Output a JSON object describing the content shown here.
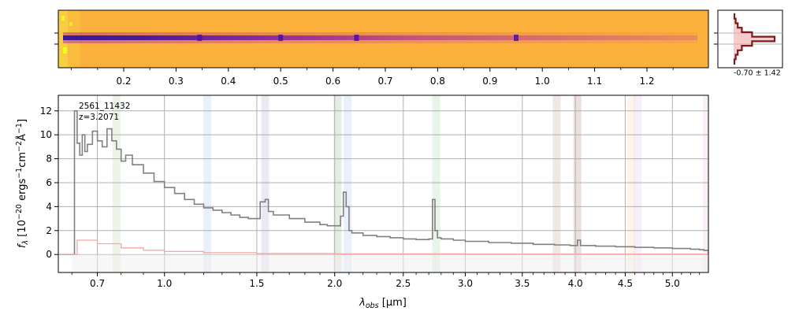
{
  "chart_data": [
    {
      "type": "heatmap",
      "panel": "2d-spectrum",
      "colormap": "plasma",
      "x_unit": "µm",
      "top_ticks": [
        "0.2",
        "0.3",
        "0.4",
        "0.5",
        "0.6",
        "0.7",
        "0.8",
        "0.9",
        "1.0",
        "1.1",
        "1.2"
      ],
      "top_tick_values": [
        0.2,
        0.3,
        0.4,
        0.5,
        0.6,
        0.7,
        0.8,
        0.9,
        1.0,
        1.1,
        1.2
      ],
      "emission_features_x": [
        0.345,
        0.5,
        0.645,
        0.95
      ],
      "trace_row_fraction": 0.5
    },
    {
      "type": "line",
      "panel": "cross-dispersion-profile",
      "annotation": "-0.70 ± 1.42",
      "profile": [
        0.02,
        0.05,
        0.1,
        0.2,
        0.45,
        1.0,
        0.45,
        0.2,
        0.1,
        0.05,
        0.02
      ]
    },
    {
      "type": "line",
      "panel": "1d-spectrum",
      "title": "",
      "annotation_lines": [
        "2561_11432",
        "z=3.2071"
      ],
      "xlabel": "λobs [µm]",
      "xlabel_parts": {
        "symbol": "λ",
        "sub": "obs",
        "rest": " [µm]"
      },
      "ylabel": "fλ [10−20 ergs−1cm−2Å−1]",
      "ylabel_parts": {
        "symbol": "f",
        "sub": "λ",
        "rest": " [10",
        "sup1": "−20",
        "mid1": " ergs",
        "sup2": "−1",
        "mid2": "cm",
        "sup3": "−2",
        "mid3": "Å",
        "sup4": "−1",
        "end": "]"
      },
      "x_ticks": [
        "0.7",
        "1.0",
        "1.5",
        "2.0",
        "2.5",
        "3.0",
        "3.5",
        "4.0",
        "4.5",
        "5.0"
      ],
      "x_tick_values": [
        0.7,
        1.0,
        1.5,
        2.0,
        2.5,
        3.0,
        3.5,
        4.0,
        4.5,
        5.0
      ],
      "y_ticks": [
        "0",
        "2",
        "4",
        "6",
        "8",
        "10",
        "12"
      ],
      "y_tick_values": [
        0,
        2,
        4,
        6,
        8,
        10,
        12
      ],
      "xlim": [
        0.55,
        5.4
      ],
      "ylim": [
        -1.5,
        13.3
      ],
      "grid": true,
      "line_bands": [
        {
          "x": 0.78,
          "color": "#9bc27a"
        },
        {
          "x": 1.22,
          "color": "#7fb3e6"
        },
        {
          "x": 1.55,
          "color": "#8a86c4"
        },
        {
          "x": 2.02,
          "color": "#5aa05a"
        },
        {
          "x": 2.09,
          "color": "#7fb3e6"
        },
        {
          "x": 2.76,
          "color": "#7cc27a"
        },
        {
          "x": 3.82,
          "color": "#b07a6a"
        },
        {
          "x": 4.02,
          "color": "#a05050"
        },
        {
          "x": 4.56,
          "color": "#f2c090"
        },
        {
          "x": 4.63,
          "color": "#d9a6e0"
        },
        {
          "x": 5.38,
          "color": "#d9a6e0"
        }
      ],
      "series": [
        {
          "color": "#808080",
          "x": [
            0.55,
            0.6,
            0.61,
            0.62,
            0.63,
            0.64,
            0.65,
            0.66,
            0.68,
            0.7,
            0.72,
            0.74,
            0.76,
            0.78,
            0.8,
            0.82,
            0.85,
            0.9,
            0.95,
            1.0,
            1.05,
            1.1,
            1.15,
            1.2,
            1.25,
            1.3,
            1.35,
            1.4,
            1.45,
            1.5,
            1.52,
            1.55,
            1.57,
            1.6,
            1.7,
            1.8,
            1.9,
            1.95,
            2.0,
            2.04,
            2.06,
            2.08,
            2.1,
            2.12,
            2.2,
            2.3,
            2.4,
            2.5,
            2.6,
            2.7,
            2.73,
            2.75,
            2.77,
            2.8,
            2.9,
            3.0,
            3.2,
            3.4,
            3.6,
            3.8,
            3.95,
            4.0,
            4.02,
            4.05,
            4.2,
            4.4,
            4.6,
            4.8,
            5.0,
            5.2,
            5.3,
            5.35,
            5.4
          ],
          "values": [
            0,
            0,
            12.0,
            9.3,
            8.3,
            10.0,
            8.6,
            9.2,
            10.3,
            9.5,
            9.0,
            10.5,
            9.5,
            8.8,
            7.8,
            8.3,
            7.5,
            6.8,
            6.1,
            5.6,
            5.1,
            4.6,
            4.2,
            3.9,
            3.7,
            3.5,
            3.3,
            3.1,
            3.0,
            3.0,
            4.4,
            4.6,
            3.6,
            3.3,
            3.0,
            2.7,
            2.5,
            2.4,
            2.4,
            3.2,
            5.2,
            4.0,
            2.0,
            1.8,
            1.6,
            1.5,
            1.4,
            1.3,
            1.25,
            1.3,
            4.6,
            2.0,
            1.4,
            1.3,
            1.2,
            1.1,
            1.0,
            0.95,
            0.85,
            0.8,
            0.75,
            0.75,
            1.2,
            0.75,
            0.7,
            0.65,
            0.6,
            0.55,
            0.5,
            0.45,
            0.4,
            0.35,
            0
          ]
        },
        {
          "color": "#f4a6a6",
          "x": [
            0.55,
            0.6,
            0.62,
            0.7,
            0.8,
            0.9,
            1.0,
            1.2,
            1.5,
            2.0,
            3.0,
            4.0,
            5.0,
            5.4
          ],
          "values": [
            0,
            0,
            1.2,
            0.9,
            0.55,
            0.35,
            0.25,
            0.15,
            0.08,
            0.05,
            0.04,
            0.04,
            0.04,
            0.04
          ]
        }
      ]
    }
  ]
}
